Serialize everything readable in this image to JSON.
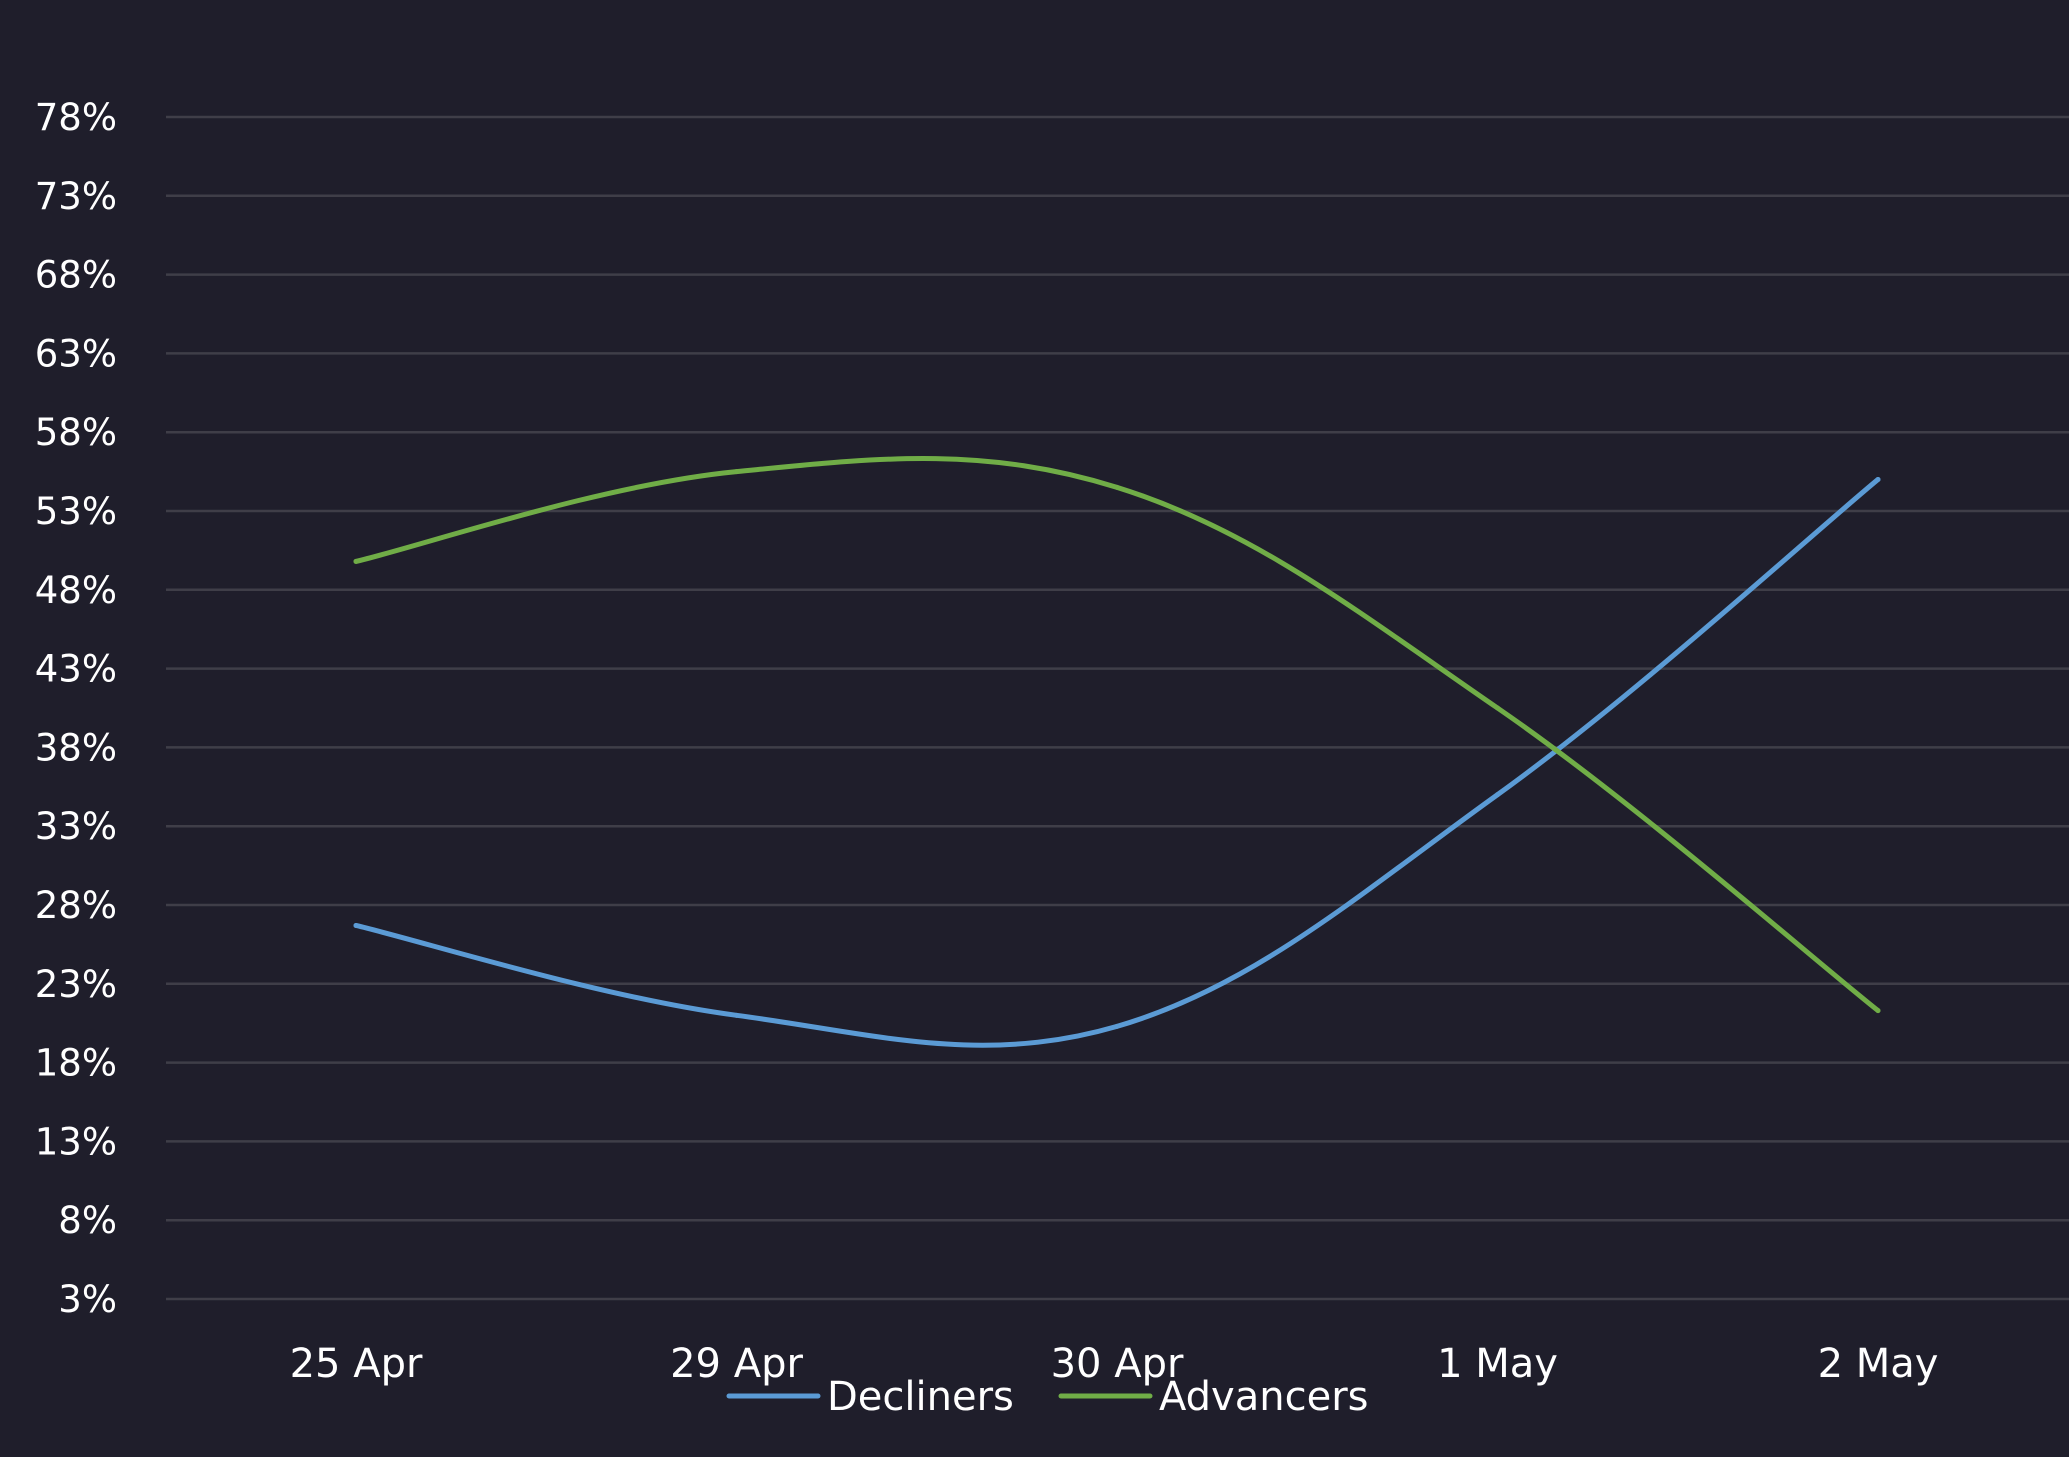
{
  "chart_data": {
    "type": "line",
    "categories": [
      "25 Apr",
      "29 Apr",
      "30 Apr",
      "1 May",
      "2 May"
    ],
    "yticks": [
      "78%",
      "73%",
      "68%",
      "63%",
      "58%",
      "53%",
      "48%",
      "43%",
      "38%",
      "33%",
      "28%",
      "23%",
      "18%",
      "13%",
      "8%",
      "3%"
    ],
    "ylim": [
      3,
      78
    ],
    "grid": true,
    "legend_position": "bottom",
    "series": [
      {
        "name": "Decliners",
        "color": "#5b9bd5",
        "values": [
          26.7,
          21.0,
          20.3,
          35.0,
          55.0
        ]
      },
      {
        "name": "Advancers",
        "color": "#70ad47",
        "values": [
          49.8,
          55.5,
          54.5,
          40.5,
          21.3
        ]
      }
    ],
    "colors": {
      "background": "#1f1e2b",
      "grid": "#3f3e48",
      "text": "#ffffff"
    }
  }
}
